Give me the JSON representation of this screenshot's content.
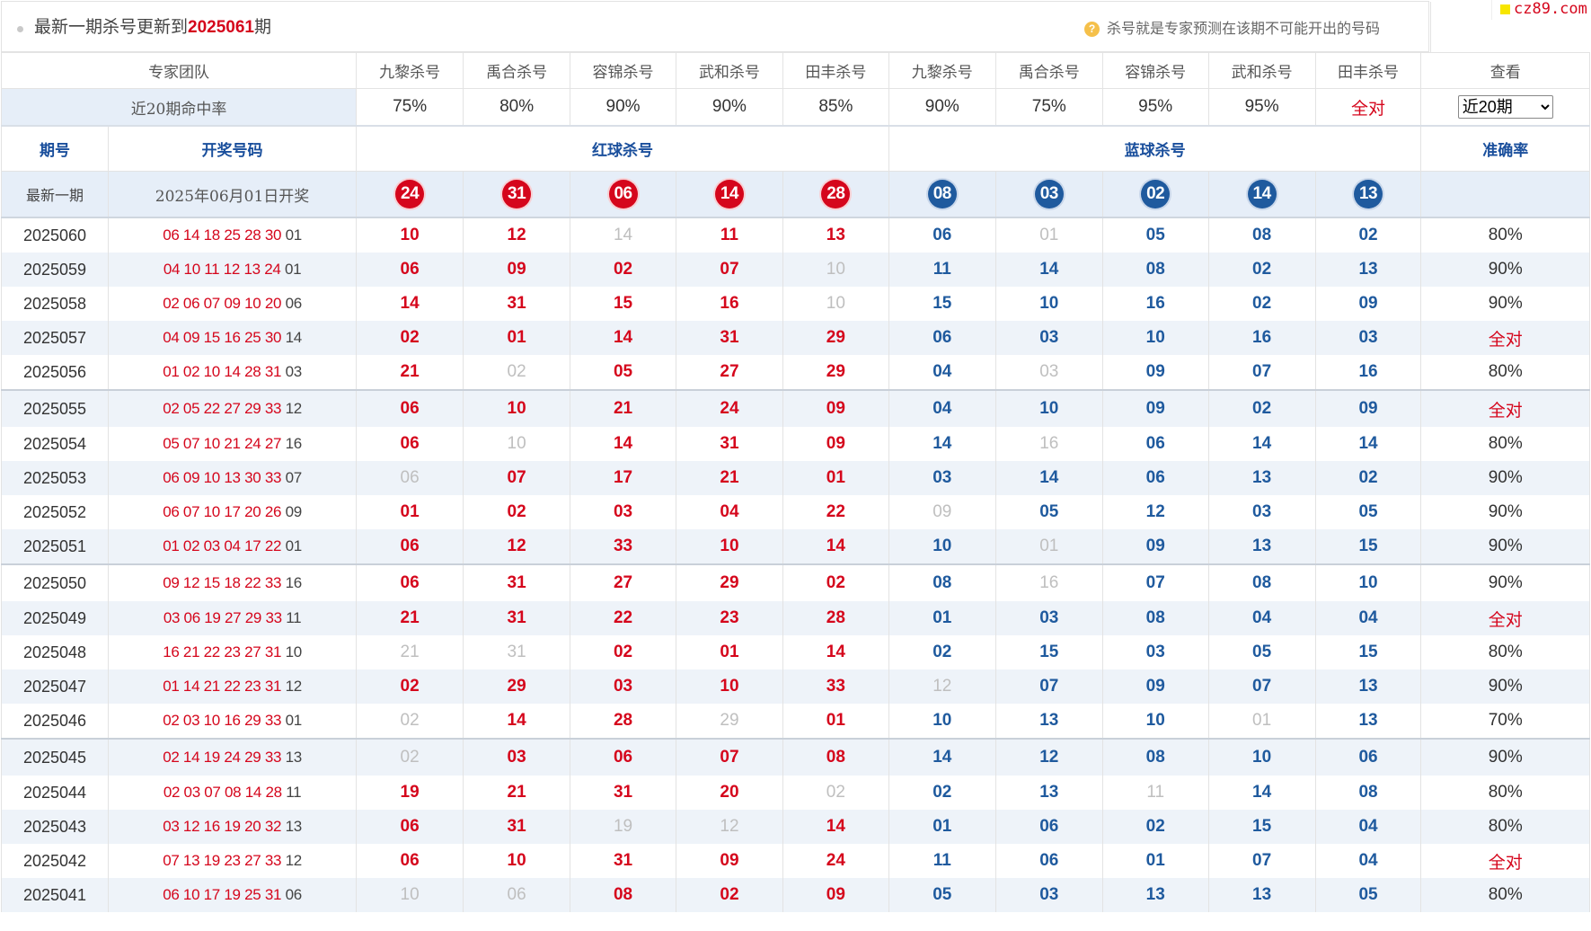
{
  "header": {
    "title_prefix": "最新一期杀号更新到",
    "title_period": "2025061",
    "title_suffix": "期",
    "hint": "杀号就是专家预测在该期不可能开出的号码"
  },
  "logo": "cz89.com",
  "experts_label": "专家团队",
  "experts": [
    "九黎杀号",
    "禹合杀号",
    "容锦杀号",
    "武和杀号",
    "田丰杀号",
    "九黎杀号",
    "禹合杀号",
    "容锦杀号",
    "武和杀号",
    "田丰杀号"
  ],
  "view_label": "查看",
  "hit_label": "近20期命中率",
  "hit_rates": [
    "75%",
    "80%",
    "90%",
    "90%",
    "85%",
    "90%",
    "75%",
    "95%",
    "95%",
    "全对"
  ],
  "range_select": {
    "selected": "近20期"
  },
  "col_period": "期号",
  "col_draw": "开奖号码",
  "col_red": "红球杀号",
  "col_blue": "蓝球杀号",
  "col_acc": "准确率",
  "latest": {
    "label": "最新一期",
    "open_date": "2025年06月01日开奖",
    "red_kills": [
      "24",
      "31",
      "06",
      "14",
      "28"
    ],
    "blue_kills": [
      "08",
      "03",
      "02",
      "14",
      "13"
    ]
  },
  "rows": [
    {
      "period": "2025060",
      "red": "06 14 18 25 28 30",
      "blue": "01",
      "kills": [
        "10",
        "12",
        "14",
        "11",
        "13",
        "06",
        "01",
        "05",
        "08",
        "02"
      ],
      "miss": [
        2,
        6
      ],
      "acc": "80%"
    },
    {
      "period": "2025059",
      "red": "04 10 11 12 13 24",
      "blue": "01",
      "kills": [
        "06",
        "09",
        "02",
        "07",
        "10",
        "11",
        "14",
        "08",
        "02",
        "13"
      ],
      "miss": [
        4
      ],
      "acc": "90%"
    },
    {
      "period": "2025058",
      "red": "02 06 07 09 10 20",
      "blue": "06",
      "kills": [
        "14",
        "31",
        "15",
        "16",
        "10",
        "15",
        "10",
        "16",
        "02",
        "09"
      ],
      "miss": [
        4
      ],
      "acc": "90%"
    },
    {
      "period": "2025057",
      "red": "04 09 15 16 25 30",
      "blue": "14",
      "kills": [
        "02",
        "01",
        "14",
        "31",
        "29",
        "06",
        "03",
        "10",
        "16",
        "03"
      ],
      "miss": [],
      "acc": "全对"
    },
    {
      "period": "2025056",
      "red": "01 02 10 14 28 31",
      "blue": "03",
      "kills": [
        "21",
        "02",
        "05",
        "27",
        "29",
        "04",
        "03",
        "09",
        "07",
        "16"
      ],
      "miss": [
        1,
        6
      ],
      "acc": "80%"
    },
    {
      "period": "2025055",
      "red": "02 05 22 27 29 33",
      "blue": "12",
      "kills": [
        "06",
        "10",
        "21",
        "24",
        "09",
        "04",
        "10",
        "09",
        "02",
        "09"
      ],
      "miss": [],
      "acc": "全对"
    },
    {
      "period": "2025054",
      "red": "05 07 10 21 24 27",
      "blue": "16",
      "kills": [
        "06",
        "10",
        "14",
        "31",
        "09",
        "14",
        "16",
        "06",
        "14",
        "14"
      ],
      "miss": [
        1,
        6
      ],
      "acc": "80%"
    },
    {
      "period": "2025053",
      "red": "06 09 10 13 30 33",
      "blue": "07",
      "kills": [
        "06",
        "07",
        "17",
        "21",
        "01",
        "03",
        "14",
        "06",
        "13",
        "02"
      ],
      "miss": [
        0
      ],
      "acc": "90%"
    },
    {
      "period": "2025052",
      "red": "06 07 10 17 20 26",
      "blue": "09",
      "kills": [
        "01",
        "02",
        "03",
        "04",
        "22",
        "09",
        "05",
        "12",
        "03",
        "05"
      ],
      "miss": [
        5
      ],
      "acc": "90%"
    },
    {
      "period": "2025051",
      "red": "01 02 03 04 17 22",
      "blue": "01",
      "kills": [
        "06",
        "12",
        "33",
        "10",
        "14",
        "10",
        "01",
        "09",
        "13",
        "15"
      ],
      "miss": [
        6
      ],
      "acc": "90%"
    },
    {
      "period": "2025050",
      "red": "09 12 15 18 22 33",
      "blue": "16",
      "kills": [
        "06",
        "31",
        "27",
        "29",
        "02",
        "08",
        "16",
        "07",
        "08",
        "10"
      ],
      "miss": [
        6
      ],
      "acc": "90%"
    },
    {
      "period": "2025049",
      "red": "03 06 19 27 29 33",
      "blue": "11",
      "kills": [
        "21",
        "31",
        "22",
        "23",
        "28",
        "01",
        "03",
        "08",
        "04",
        "04"
      ],
      "miss": [],
      "acc": "全对"
    },
    {
      "period": "2025048",
      "red": "16 21 22 23 27 31",
      "blue": "10",
      "kills": [
        "21",
        "31",
        "02",
        "01",
        "14",
        "02",
        "15",
        "03",
        "05",
        "15"
      ],
      "miss": [
        0,
        1
      ],
      "acc": "80%"
    },
    {
      "period": "2025047",
      "red": "01 14 21 22 23 31",
      "blue": "12",
      "kills": [
        "02",
        "29",
        "03",
        "10",
        "33",
        "12",
        "07",
        "09",
        "07",
        "13"
      ],
      "miss": [
        5
      ],
      "acc": "90%"
    },
    {
      "period": "2025046",
      "red": "02 03 10 16 29 33",
      "blue": "01",
      "kills": [
        "02",
        "14",
        "28",
        "29",
        "01",
        "10",
        "13",
        "10",
        "01",
        "13"
      ],
      "miss": [
        0,
        3,
        8
      ],
      "acc": "70%"
    },
    {
      "period": "2025045",
      "red": "02 14 19 24 29 33",
      "blue": "13",
      "kills": [
        "02",
        "03",
        "06",
        "07",
        "08",
        "14",
        "12",
        "08",
        "10",
        "06"
      ],
      "miss": [
        0
      ],
      "acc": "90%"
    },
    {
      "period": "2025044",
      "red": "02 03 07 08 14 28",
      "blue": "11",
      "kills": [
        "19",
        "21",
        "31",
        "20",
        "02",
        "02",
        "13",
        "11",
        "14",
        "08"
      ],
      "miss": [
        4,
        7
      ],
      "acc": "80%"
    },
    {
      "period": "2025043",
      "red": "03 12 16 19 20 32",
      "blue": "13",
      "kills": [
        "06",
        "31",
        "19",
        "12",
        "14",
        "01",
        "06",
        "02",
        "15",
        "04"
      ],
      "miss": [
        2,
        3
      ],
      "acc": "80%"
    },
    {
      "period": "2025042",
      "red": "07 13 19 23 27 33",
      "blue": "12",
      "kills": [
        "06",
        "10",
        "31",
        "09",
        "24",
        "11",
        "06",
        "01",
        "07",
        "04"
      ],
      "miss": [],
      "acc": "全对"
    },
    {
      "period": "2025041",
      "red": "06 10 17 19 25 31",
      "blue": "06",
      "kills": [
        "10",
        "06",
        "08",
        "02",
        "09",
        "05",
        "03",
        "13",
        "13",
        "05"
      ],
      "miss": [
        0,
        1
      ],
      "acc": "80%"
    }
  ]
}
